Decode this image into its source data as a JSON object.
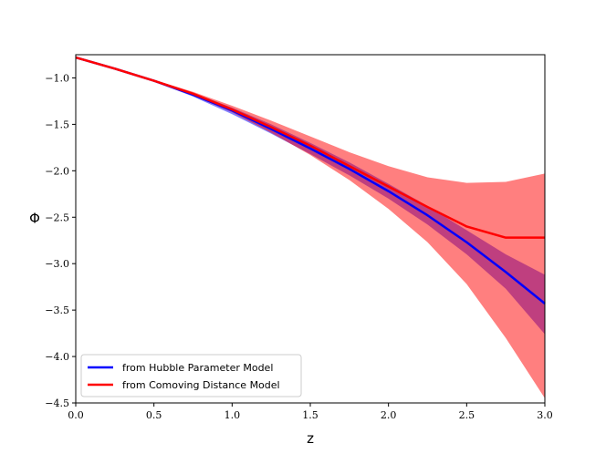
{
  "chart_data": {
    "type": "line",
    "title": "",
    "xlabel": "z",
    "ylabel": "Φ",
    "xlim": [
      0.0,
      3.0
    ],
    "ylim": [
      -4.5,
      -0.75
    ],
    "xticks": [
      0.0,
      0.5,
      1.0,
      1.5,
      2.0,
      2.5,
      3.0
    ],
    "xtick_labels": [
      "0.0",
      "0.5",
      "1.0",
      "1.5",
      "2.0",
      "2.5",
      "3.0"
    ],
    "yticks": [
      -1.0,
      -1.5,
      -2.0,
      -2.5,
      -3.0,
      -3.5,
      -4.0,
      -4.5
    ],
    "ytick_labels": [
      "−1.0",
      "−1.5",
      "−2.0",
      "−2.5",
      "−3.0",
      "−3.5",
      "−4.0",
      "−4.5"
    ],
    "grid": false,
    "legend_position": "lower-left",
    "series": [
      {
        "name": "from Hubble Parameter Model",
        "color": "#0000ff",
        "band_color": "#0000ff",
        "band_opacity": 0.5,
        "x": [
          0.0,
          0.25,
          0.5,
          0.75,
          1.0,
          1.25,
          1.5,
          1.75,
          2.0,
          2.25,
          2.5,
          2.75,
          3.0
        ],
        "y": [
          -0.78,
          -0.9,
          -1.03,
          -1.18,
          -1.35,
          -1.55,
          -1.76,
          -1.98,
          -2.22,
          -2.48,
          -2.77,
          -3.09,
          -3.43
        ],
        "lower": [
          -0.78,
          -0.9,
          -1.04,
          -1.2,
          -1.39,
          -1.6,
          -1.82,
          -2.05,
          -2.3,
          -2.58,
          -2.9,
          -3.27,
          -3.76
        ],
        "upper": [
          -0.78,
          -0.9,
          -1.02,
          -1.16,
          -1.32,
          -1.5,
          -1.7,
          -1.91,
          -2.14,
          -2.38,
          -2.64,
          -2.9,
          -3.12
        ]
      },
      {
        "name": "from Comoving Distance Model",
        "color": "#ff0000",
        "band_color": "#ff0000",
        "band_opacity": 0.5,
        "x": [
          0.0,
          0.25,
          0.5,
          0.75,
          1.0,
          1.25,
          1.5,
          1.75,
          2.0,
          2.25,
          2.5,
          2.75,
          3.0
        ],
        "y": [
          -0.78,
          -0.9,
          -1.03,
          -1.17,
          -1.34,
          -1.53,
          -1.73,
          -1.95,
          -2.17,
          -2.39,
          -2.6,
          -2.72,
          -2.72
        ],
        "lower": [
          -0.78,
          -0.9,
          -1.04,
          -1.19,
          -1.37,
          -1.59,
          -1.83,
          -2.1,
          -2.41,
          -2.77,
          -3.22,
          -3.8,
          -4.45
        ],
        "upper": [
          -0.78,
          -0.9,
          -1.02,
          -1.15,
          -1.3,
          -1.46,
          -1.63,
          -1.8,
          -1.95,
          -2.07,
          -2.13,
          -2.12,
          -2.03
        ]
      }
    ]
  }
}
